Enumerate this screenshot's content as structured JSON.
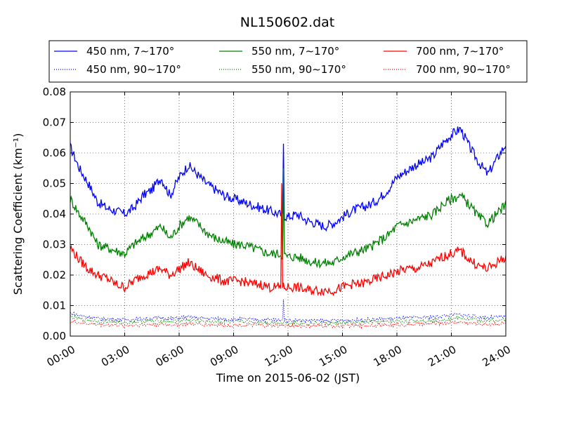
{
  "chart_data": {
    "type": "line",
    "title": "NL150602.dat",
    "xlabel": "Time on 2015-06-02 (JST)",
    "ylabel": "Scattering Coefficient (km⁻¹)",
    "xlim": [
      "2015-06-02 00:00",
      "2015-06-03 00:00"
    ],
    "ylim": [
      0,
      0.08
    ],
    "x_ticks": [
      "00:00",
      "03:00",
      "06:00",
      "09:00",
      "12:00",
      "15:00",
      "18:00",
      "21:00",
      "24:00"
    ],
    "y_ticks": [
      "0.00",
      "0.01",
      "0.02",
      "0.03",
      "0.04",
      "0.05",
      "0.06",
      "0.07",
      "0.08"
    ],
    "grid": true,
    "legend_position": "top",
    "x": [
      "00:00",
      "00:30",
      "01:00",
      "01:30",
      "02:00",
      "02:30",
      "03:00",
      "03:30",
      "04:00",
      "04:30",
      "05:00",
      "05:30",
      "06:00",
      "06:30",
      "07:00",
      "07:30",
      "08:00",
      "08:30",
      "09:00",
      "09:30",
      "10:00",
      "10:30",
      "11:00",
      "11:30",
      "12:00",
      "12:30",
      "13:00",
      "13:30",
      "14:00",
      "14:30",
      "15:00",
      "15:30",
      "16:00",
      "16:30",
      "17:00",
      "17:30",
      "18:00",
      "18:30",
      "19:00",
      "19:30",
      "20:00",
      "20:30",
      "21:00",
      "21:30",
      "22:00",
      "22:30",
      "23:00",
      "23:30",
      "24:00"
    ],
    "series": [
      {
        "name": "450 nm, 7∼170°",
        "color": "#0000ff",
        "style": "solid",
        "values": [
          0.062,
          0.055,
          0.05,
          0.044,
          0.042,
          0.041,
          0.04,
          0.042,
          0.046,
          0.048,
          0.052,
          0.046,
          0.052,
          0.056,
          0.053,
          0.05,
          0.048,
          0.046,
          0.045,
          0.044,
          0.043,
          0.042,
          0.041,
          0.04,
          0.039,
          0.04,
          0.038,
          0.037,
          0.036,
          0.037,
          0.039,
          0.041,
          0.042,
          0.043,
          0.045,
          0.048,
          0.052,
          0.054,
          0.056,
          0.057,
          0.059,
          0.063,
          0.066,
          0.068,
          0.062,
          0.057,
          0.053,
          0.058,
          0.063
        ]
      },
      {
        "name": "550 nm, 7∼170°",
        "color": "#008000",
        "style": "solid",
        "values": [
          0.045,
          0.04,
          0.036,
          0.03,
          0.029,
          0.028,
          0.027,
          0.03,
          0.032,
          0.034,
          0.036,
          0.032,
          0.036,
          0.039,
          0.037,
          0.034,
          0.032,
          0.031,
          0.03,
          0.03,
          0.029,
          0.028,
          0.027,
          0.027,
          0.026,
          0.026,
          0.025,
          0.024,
          0.024,
          0.024,
          0.026,
          0.027,
          0.028,
          0.029,
          0.031,
          0.033,
          0.036,
          0.037,
          0.038,
          0.039,
          0.04,
          0.043,
          0.045,
          0.046,
          0.043,
          0.039,
          0.037,
          0.04,
          0.043
        ]
      },
      {
        "name": "700 nm, 7∼170°",
        "color": "#ff0000",
        "style": "solid",
        "values": [
          0.029,
          0.025,
          0.022,
          0.02,
          0.019,
          0.017,
          0.016,
          0.018,
          0.02,
          0.021,
          0.022,
          0.02,
          0.022,
          0.024,
          0.022,
          0.02,
          0.019,
          0.018,
          0.018,
          0.018,
          0.017,
          0.017,
          0.016,
          0.016,
          0.016,
          0.016,
          0.015,
          0.015,
          0.015,
          0.015,
          0.016,
          0.017,
          0.017,
          0.018,
          0.019,
          0.02,
          0.021,
          0.022,
          0.022,
          0.023,
          0.024,
          0.026,
          0.027,
          0.028,
          0.025,
          0.023,
          0.022,
          0.024,
          0.026
        ]
      },
      {
        "name": "450 nm, 90∼170°",
        "color": "#0000ff",
        "style": "dotted",
        "values": [
          0.0075,
          0.0068,
          0.0063,
          0.0058,
          0.0057,
          0.0055,
          0.0054,
          0.0055,
          0.0057,
          0.0058,
          0.006,
          0.0057,
          0.006,
          0.0062,
          0.006,
          0.0058,
          0.0057,
          0.0056,
          0.0055,
          0.0055,
          0.0054,
          0.0054,
          0.0053,
          0.0053,
          0.0052,
          0.0052,
          0.0051,
          0.005,
          0.005,
          0.005,
          0.0051,
          0.0052,
          0.0053,
          0.0054,
          0.0055,
          0.0056,
          0.0058,
          0.0059,
          0.006,
          0.0061,
          0.0063,
          0.0066,
          0.0069,
          0.0071,
          0.0066,
          0.0062,
          0.006,
          0.0062,
          0.0064
        ]
      },
      {
        "name": "550 nm, 90∼170°",
        "color": "#008000",
        "style": "dotted",
        "values": [
          0.0062,
          0.0057,
          0.0053,
          0.0049,
          0.0048,
          0.0046,
          0.0045,
          0.0046,
          0.0048,
          0.0049,
          0.005,
          0.0048,
          0.005,
          0.0052,
          0.005,
          0.0049,
          0.0048,
          0.0047,
          0.0046,
          0.0046,
          0.0045,
          0.0045,
          0.0044,
          0.0044,
          0.0043,
          0.0043,
          0.0042,
          0.0042,
          0.0042,
          0.0042,
          0.0043,
          0.0043,
          0.0044,
          0.0045,
          0.0046,
          0.0047,
          0.0048,
          0.0049,
          0.005,
          0.0051,
          0.0052,
          0.0055,
          0.0057,
          0.0059,
          0.0055,
          0.0052,
          0.005,
          0.0052,
          0.0053
        ]
      },
      {
        "name": "700 nm, 90∼170°",
        "color": "#ff0000",
        "style": "dotted",
        "values": [
          0.0048,
          0.0044,
          0.0041,
          0.0038,
          0.0037,
          0.0036,
          0.0035,
          0.0036,
          0.0037,
          0.0038,
          0.0039,
          0.0037,
          0.0039,
          0.004,
          0.0039,
          0.0038,
          0.0037,
          0.0036,
          0.0036,
          0.0036,
          0.0035,
          0.0035,
          0.0034,
          0.0034,
          0.0034,
          0.0034,
          0.0033,
          0.0033,
          0.0033,
          0.0033,
          0.0033,
          0.0034,
          0.0034,
          0.0035,
          0.0036,
          0.0036,
          0.0037,
          0.0038,
          0.0039,
          0.004,
          0.0041,
          0.0043,
          0.0045,
          0.0046,
          0.0043,
          0.004,
          0.0039,
          0.004,
          0.0042
        ]
      }
    ],
    "annotations": [
      {
        "note": "spike",
        "x": "11:45",
        "series": "450 nm, 7∼170°",
        "y": 0.063
      },
      {
        "note": "spike",
        "x": "11:45",
        "series": "550 nm, 7∼170°",
        "y": 0.055
      },
      {
        "note": "spike",
        "x": "11:40",
        "series": "700 nm, 7∼170°",
        "y": 0.05
      },
      {
        "note": "spike",
        "x": "11:45",
        "series": "450 nm, 90∼170°",
        "y": 0.012
      }
    ]
  }
}
